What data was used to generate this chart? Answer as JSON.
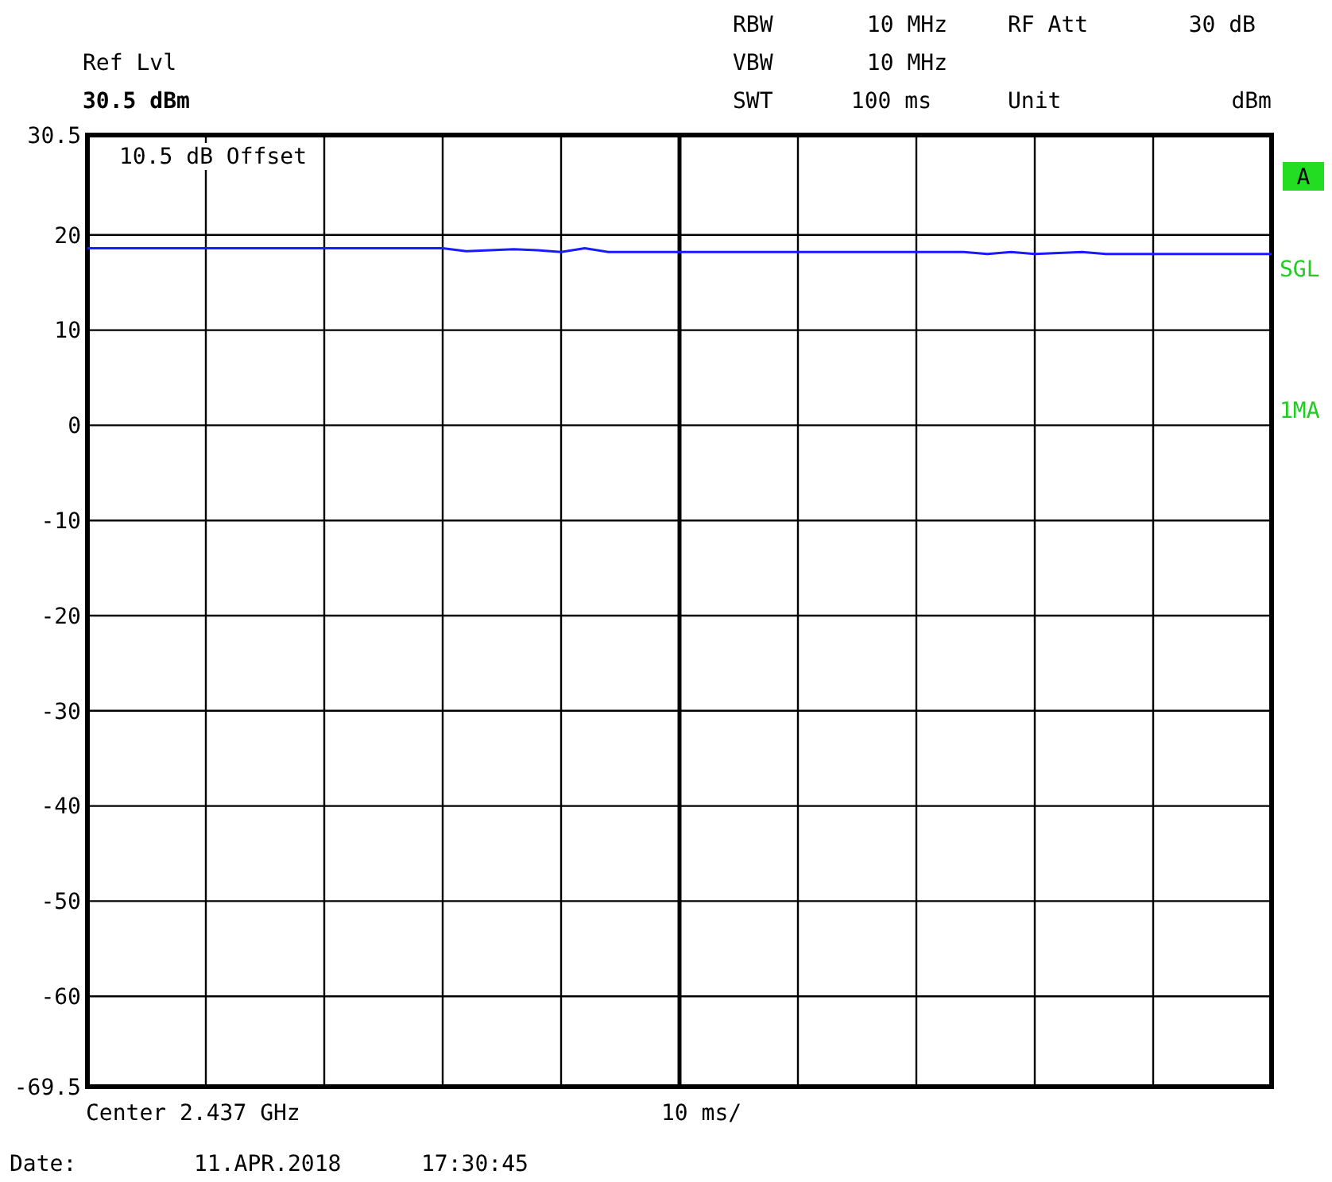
{
  "chart_data": {
    "type": "line",
    "categories": [
      null,
      null,
      null,
      null,
      null,
      null,
      null,
      null,
      null,
      null,
      null,
      null,
      null,
      null,
      null,
      null,
      null,
      null,
      null,
      null,
      null,
      null,
      null,
      null,
      null,
      null,
      null,
      null,
      null,
      null,
      null,
      null,
      null,
      null,
      null,
      null,
      null,
      null,
      null,
      null,
      null,
      null,
      null,
      null,
      null,
      null,
      null,
      null,
      null,
      null,
      null
    ],
    "series": [
      {
        "color": "#1a1aff",
        "values": [
          18.6,
          18.6,
          18.6,
          18.6,
          18.6,
          18.6,
          18.6,
          18.6,
          18.6,
          18.6,
          18.6,
          18.6,
          18.6,
          18.6,
          18.6,
          18.6,
          18.3,
          18.4,
          18.5,
          18.4,
          18.2,
          18.6,
          18.2,
          18.2,
          18.2,
          18.2,
          18.2,
          18.2,
          18.2,
          18.2,
          18.2,
          18.2,
          18.2,
          18.2,
          18.2,
          18.2,
          18.2,
          18.2,
          18.0,
          18.2,
          18.0,
          18.1,
          18.2,
          18.0,
          18.0,
          18.0,
          18.0,
          18.0,
          18.0,
          18.0,
          18.0
        ]
      }
    ],
    "ylim": [
      -69.5,
      30.5
    ],
    "yticks": [
      30.5,
      20,
      10,
      0,
      -10,
      -20,
      -30,
      -40,
      -50,
      -60,
      -69.5
    ],
    "tick_labels": "y",
    "grid": true,
    "marker": "none",
    "line_style": "solid",
    "annotations": [
      "Ref Lvl",
      "30.5 dBm",
      "RBW",
      "10 MHz",
      "VBW",
      "10 MHz",
      "SWT",
      "100 ms",
      "RF Att",
      "30 dB",
      "Unit",
      "dBm",
      "10.5 dB Offset",
      "A",
      "SGL",
      "1MA",
      "Center 2.437 GHz",
      "10 ms/",
      "Date:",
      "11.APR.2018",
      "17:30:45"
    ]
  }
}
